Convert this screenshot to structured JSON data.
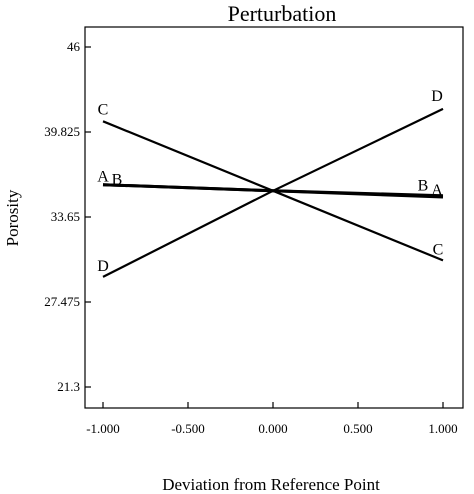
{
  "chart_data": {
    "type": "line",
    "title": "Perturbation",
    "xlabel": "Deviation from Reference Point",
    "ylabel": "Porosity",
    "x": [
      -1.0,
      0.0,
      1.0
    ],
    "xlim": [
      -1.0,
      1.0
    ],
    "ylim": [
      21.3,
      46
    ],
    "xticks": [
      -1.0,
      -0.5,
      0.0,
      0.5,
      1.0
    ],
    "xtick_labels": [
      "-1.000",
      "-0.500",
      "0.000",
      "0.500",
      "1.000"
    ],
    "yticks": [
      21.3,
      27.475,
      33.65,
      39.825,
      46
    ],
    "ytick_labels": [
      "21.3",
      "27.475",
      "33.65",
      "39.825",
      "46"
    ],
    "grid": false,
    "legend": false,
    "series": [
      {
        "name": "A",
        "values": [
          36.0,
          35.55,
          35.1
        ],
        "color": "#000000",
        "bold": true
      },
      {
        "name": "B",
        "values": [
          36.0,
          35.55,
          35.2
        ],
        "color": "#000000",
        "bold": true
      },
      {
        "name": "C",
        "values": [
          40.6,
          35.55,
          30.5
        ],
        "color": "#000000",
        "bold": false
      },
      {
        "name": "D",
        "values": [
          29.3,
          35.55,
          41.5
        ],
        "color": "#000000",
        "bold": false
      }
    ],
    "annotations": [
      {
        "text": "C",
        "x": -1.0,
        "y": 40.6,
        "side": "left"
      },
      {
        "text": "C",
        "x": 1.0,
        "y": 30.5,
        "side": "right"
      },
      {
        "text": "D",
        "x": -1.0,
        "y": 29.3,
        "side": "left"
      },
      {
        "text": "D",
        "x": 1.0,
        "y": 41.5,
        "side": "right"
      },
      {
        "text": "A",
        "x": -1.0,
        "y": 36.0,
        "side": "left"
      },
      {
        "text": "B",
        "x": -1.0,
        "y": 36.0,
        "side": "left"
      },
      {
        "text": "B",
        "x": 1.0,
        "y": 35.2,
        "side": "right"
      },
      {
        "text": "A",
        "x": 1.0,
        "y": 35.1,
        "side": "right"
      }
    ]
  }
}
